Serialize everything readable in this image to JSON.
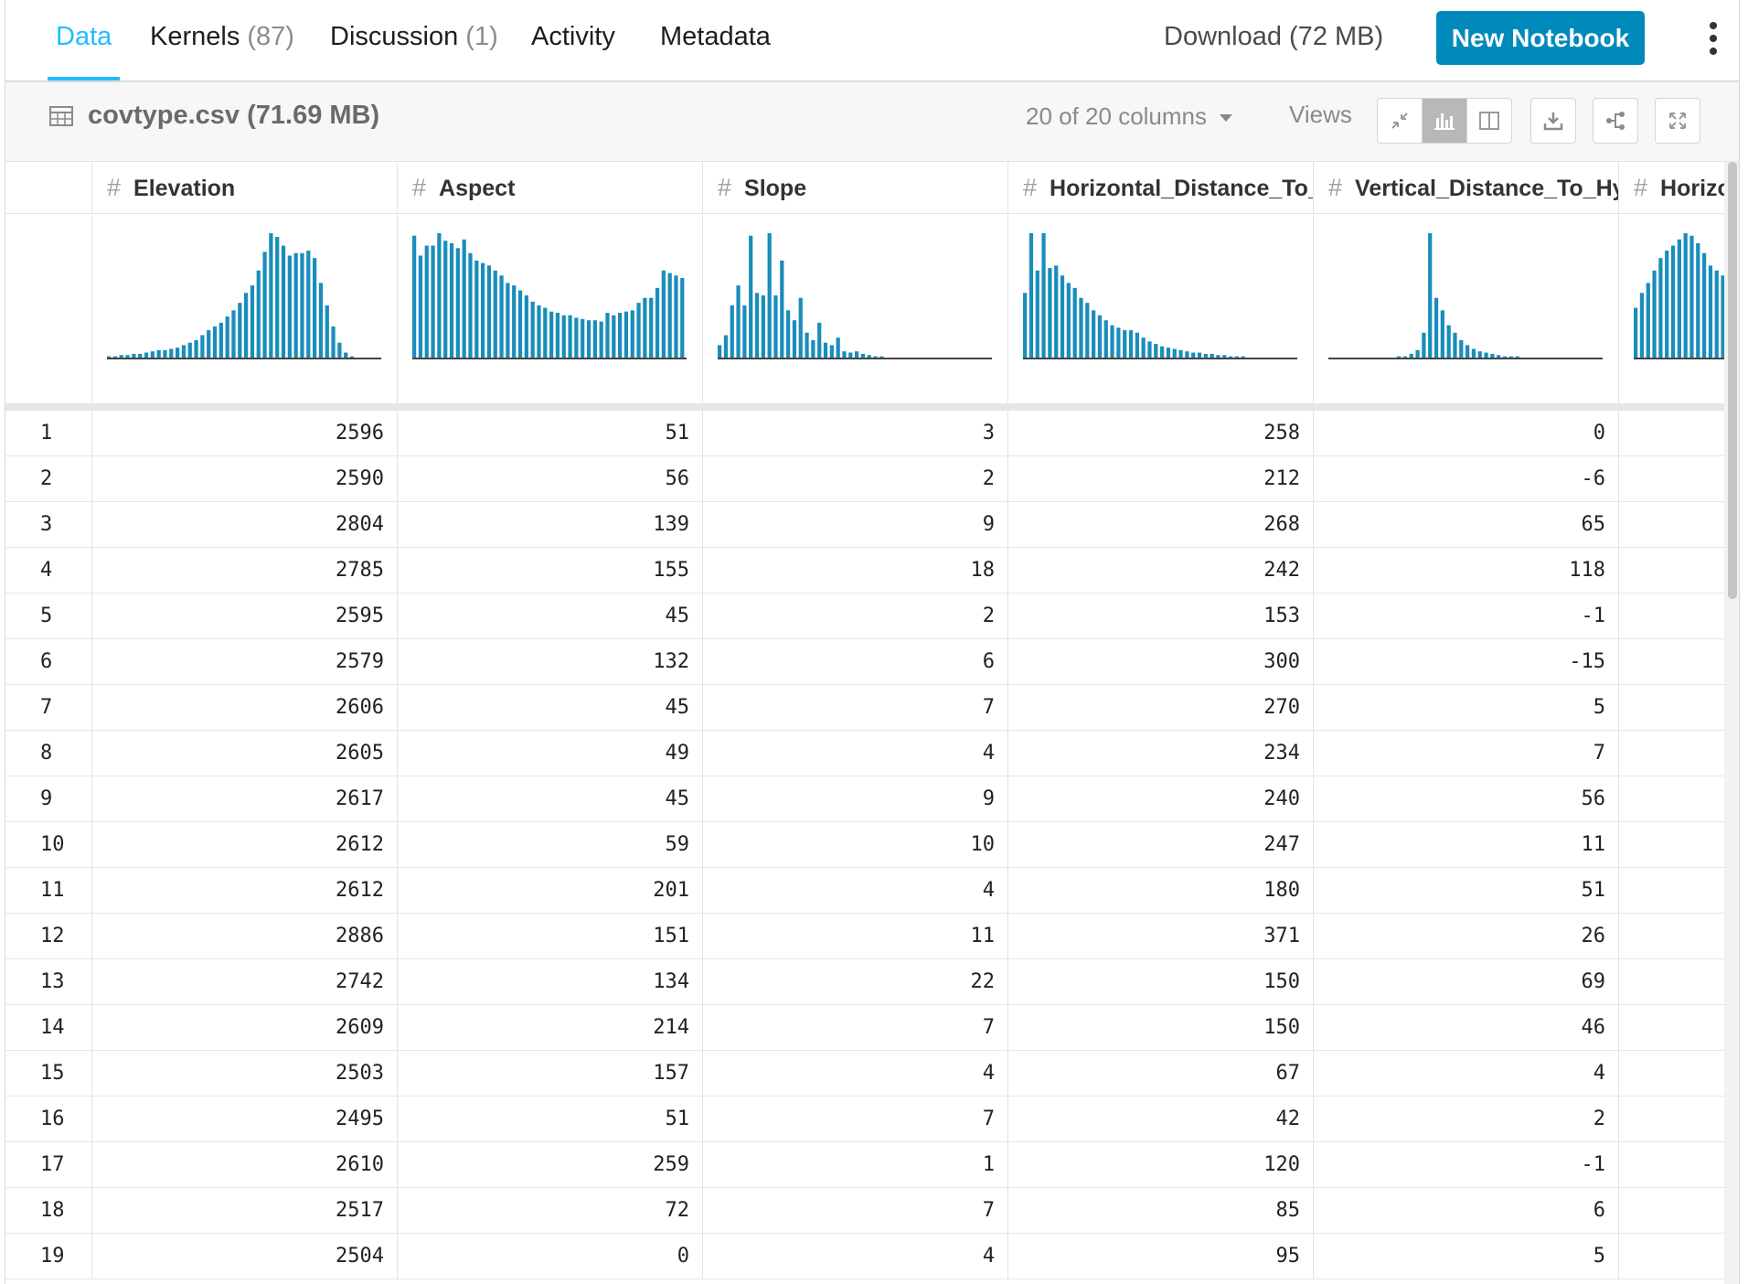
{
  "tabs": [
    {
      "label": "Data",
      "count": "",
      "active": true
    },
    {
      "label": "Kernels",
      "count": "(87)",
      "active": false
    },
    {
      "label": "Discussion",
      "count": "(1)",
      "active": false
    },
    {
      "label": "Activity",
      "count": "",
      "active": false
    },
    {
      "label": "Metadata",
      "count": "",
      "active": false
    }
  ],
  "header": {
    "download_label": "Download (72 MB)",
    "new_notebook_label": "New Notebook"
  },
  "file": {
    "name": "covtype.csv (71.69 MB)",
    "columns_selector": "20 of 20 columns",
    "views_label": "Views"
  },
  "colors": {
    "accent": "#20beff",
    "button": "#008abc",
    "bar": "#1a8dba"
  },
  "columns": [
    {
      "name": "Elevation",
      "type_icon": "#",
      "min": "1859",
      "max": "3858",
      "hist": [
        1,
        1,
        2,
        2,
        3,
        3,
        4,
        5,
        6,
        6,
        7,
        8,
        10,
        12,
        14,
        18,
        22,
        25,
        28,
        33,
        38,
        44,
        52,
        58,
        70,
        85,
        100,
        97,
        90,
        82,
        84,
        84,
        86,
        80,
        60,
        42,
        25,
        12,
        4,
        1,
        0,
        0,
        0,
        0,
        0,
        0,
        0,
        0,
        0
      ]
    },
    {
      "name": "Aspect",
      "type_icon": "#",
      "min": "0",
      "max": "360",
      "hist": [
        98,
        82,
        90,
        90,
        100,
        94,
        92,
        88,
        95,
        84,
        78,
        76,
        74,
        70,
        66,
        60,
        58,
        54,
        50,
        45,
        42,
        40,
        37,
        36,
        34,
        34,
        32,
        31,
        30,
        30,
        29,
        36,
        34,
        36,
        37,
        38,
        44,
        48,
        48,
        56,
        70,
        68,
        66,
        64
      ]
    },
    {
      "name": "Slope",
      "type_icon": "#",
      "min": "0",
      "max": "66",
      "hist": [
        10,
        18,
        42,
        58,
        42,
        98,
        52,
        50,
        100,
        50,
        78,
        38,
        30,
        48,
        20,
        14,
        28,
        12,
        10,
        16,
        5,
        4,
        5,
        3,
        2,
        1,
        1,
        0,
        0,
        0,
        0,
        0,
        0,
        0,
        0,
        0,
        0,
        0,
        0,
        0,
        0,
        0,
        0,
        0,
        0
      ]
    },
    {
      "name": "Horizontal_Distance_To_Hydrology",
      "type_icon": "#",
      "min": "0",
      "max": "1397",
      "hist": [
        52,
        100,
        70,
        100,
        72,
        74,
        66,
        60,
        56,
        48,
        44,
        38,
        34,
        30,
        26,
        24,
        22,
        22,
        20,
        16,
        13,
        11,
        9,
        8,
        7,
        6,
        5,
        4,
        4,
        3,
        3,
        2,
        2,
        1,
        1,
        1,
        0,
        0,
        0,
        0,
        0,
        0,
        0,
        0
      ]
    },
    {
      "name": "Vertical_Distance_To_Hydrology",
      "type_icon": "#",
      "min": "-173",
      "max": "601",
      "hist": [
        0,
        0,
        0,
        0,
        0,
        0,
        0,
        0,
        0,
        0,
        0,
        1,
        1,
        3,
        6,
        20,
        100,
        48,
        38,
        26,
        20,
        14,
        10,
        7,
        5,
        4,
        3,
        2,
        1,
        1,
        1,
        0,
        0,
        0,
        0,
        0,
        0,
        0,
        0,
        0,
        0,
        0,
        0,
        0
      ]
    },
    {
      "name": "Horizontal_Distance_To_Roadways",
      "type_icon": "#",
      "min": "0",
      "max": "",
      "hist": [
        40,
        52,
        60,
        70,
        80,
        86,
        90,
        95,
        100,
        98,
        92,
        84,
        74,
        70,
        66,
        60
      ]
    }
  ],
  "rows": [
    {
      "n": "1",
      "v": [
        "2596",
        "51",
        "3",
        "258",
        "0"
      ]
    },
    {
      "n": "2",
      "v": [
        "2590",
        "56",
        "2",
        "212",
        "-6"
      ]
    },
    {
      "n": "3",
      "v": [
        "2804",
        "139",
        "9",
        "268",
        "65"
      ]
    },
    {
      "n": "4",
      "v": [
        "2785",
        "155",
        "18",
        "242",
        "118"
      ]
    },
    {
      "n": "5",
      "v": [
        "2595",
        "45",
        "2",
        "153",
        "-1"
      ]
    },
    {
      "n": "6",
      "v": [
        "2579",
        "132",
        "6",
        "300",
        "-15"
      ]
    },
    {
      "n": "7",
      "v": [
        "2606",
        "45",
        "7",
        "270",
        "5"
      ]
    },
    {
      "n": "8",
      "v": [
        "2605",
        "49",
        "4",
        "234",
        "7"
      ]
    },
    {
      "n": "9",
      "v": [
        "2617",
        "45",
        "9",
        "240",
        "56"
      ]
    },
    {
      "n": "10",
      "v": [
        "2612",
        "59",
        "10",
        "247",
        "11"
      ]
    },
    {
      "n": "11",
      "v": [
        "2612",
        "201",
        "4",
        "180",
        "51"
      ]
    },
    {
      "n": "12",
      "v": [
        "2886",
        "151",
        "11",
        "371",
        "26"
      ]
    },
    {
      "n": "13",
      "v": [
        "2742",
        "134",
        "22",
        "150",
        "69"
      ]
    },
    {
      "n": "14",
      "v": [
        "2609",
        "214",
        "7",
        "150",
        "46"
      ]
    },
    {
      "n": "15",
      "v": [
        "2503",
        "157",
        "4",
        "67",
        "4"
      ]
    },
    {
      "n": "16",
      "v": [
        "2495",
        "51",
        "7",
        "42",
        "2"
      ]
    },
    {
      "n": "17",
      "v": [
        "2610",
        "259",
        "1",
        "120",
        "-1"
      ]
    },
    {
      "n": "18",
      "v": [
        "2517",
        "72",
        "7",
        "85",
        "6"
      ]
    },
    {
      "n": "19",
      "v": [
        "2504",
        "0",
        "4",
        "95",
        "5"
      ]
    }
  ]
}
